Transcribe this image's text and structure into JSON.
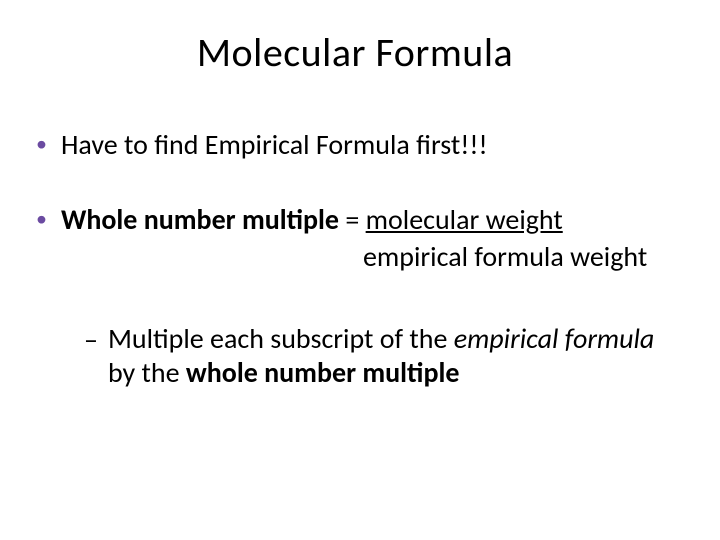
{
  "title": "Molecular Formula",
  "colors": {
    "bullet": "#6b4ba1",
    "text": "#000000",
    "background": "#ffffff"
  },
  "fonts": {
    "family": "Calibri",
    "title_size": 40,
    "body_size": 28
  },
  "bullets": [
    {
      "level": 1,
      "text": "Have to find Empirical Formula first!!!"
    },
    {
      "level": 1,
      "bold_part": "Whole number multiple",
      "eq": " = ",
      "numerator": "molecular weight",
      "denom": "empirical formula weight"
    },
    {
      "level": 2,
      "pre": "Multiple each subscript of the ",
      "italic1": "empirical formula",
      "mid": " by the ",
      "bold2": "whole number multiple"
    }
  ]
}
